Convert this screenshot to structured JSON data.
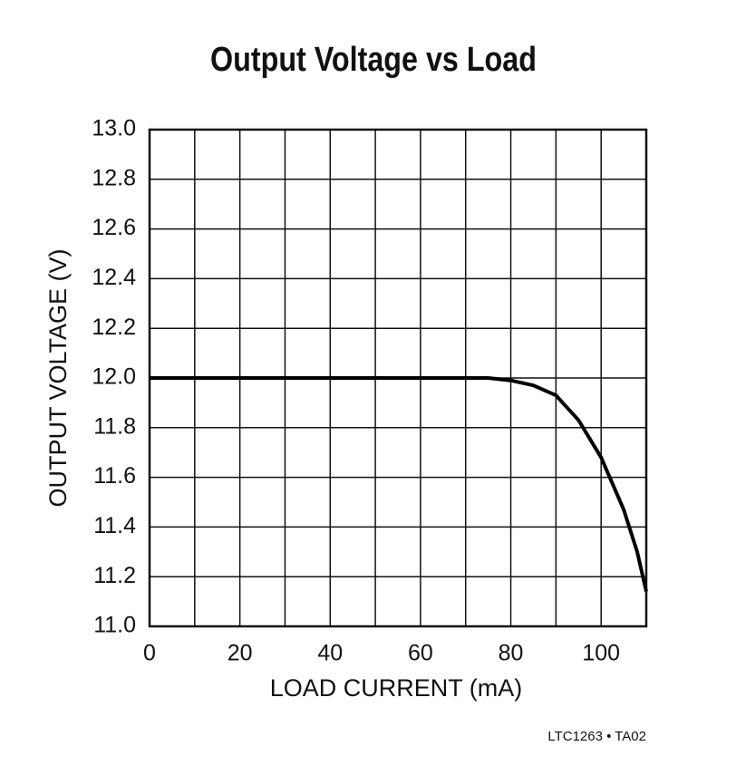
{
  "chart_data": {
    "type": "line",
    "title": "Output Voltage vs Load",
    "x_label": "LOAD CURRENT (mA)",
    "y_label": "OUTPUT VOLTAGE (V)",
    "footnote": "LTC1263 • TA02",
    "x": [
      0,
      10,
      20,
      30,
      40,
      50,
      60,
      70,
      75,
      80,
      85,
      90,
      95,
      100,
      105,
      108,
      110
    ],
    "values": [
      12.0,
      12.0,
      12.0,
      12.0,
      12.0,
      12.0,
      12.0,
      12.0,
      12.0,
      11.99,
      11.97,
      11.93,
      11.83,
      11.68,
      11.47,
      11.3,
      11.14
    ],
    "color": "#000000",
    "xlim": [
      0,
      110
    ],
    "ylim": [
      11.0,
      13.0
    ],
    "xticks": [
      0,
      20,
      40,
      60,
      80,
      100
    ],
    "xgrid": [
      10,
      30,
      50,
      70,
      90
    ],
    "yticks": [
      {
        "value": 11.0,
        "label": "11.0"
      },
      {
        "value": 11.2,
        "label": "11.2"
      },
      {
        "value": 11.4,
        "label": "11.4"
      },
      {
        "value": 11.6,
        "label": "11.6"
      },
      {
        "value": 11.8,
        "label": "11.8"
      },
      {
        "value": 12.0,
        "label": "12.0"
      },
      {
        "value": 12.2,
        "label": "12.2"
      },
      {
        "value": 12.4,
        "label": "12.4"
      },
      {
        "value": 12.6,
        "label": "12.6"
      },
      {
        "value": 12.8,
        "label": "12.8"
      },
      {
        "value": 13.0,
        "label": "13.0"
      }
    ],
    "grid": true
  }
}
